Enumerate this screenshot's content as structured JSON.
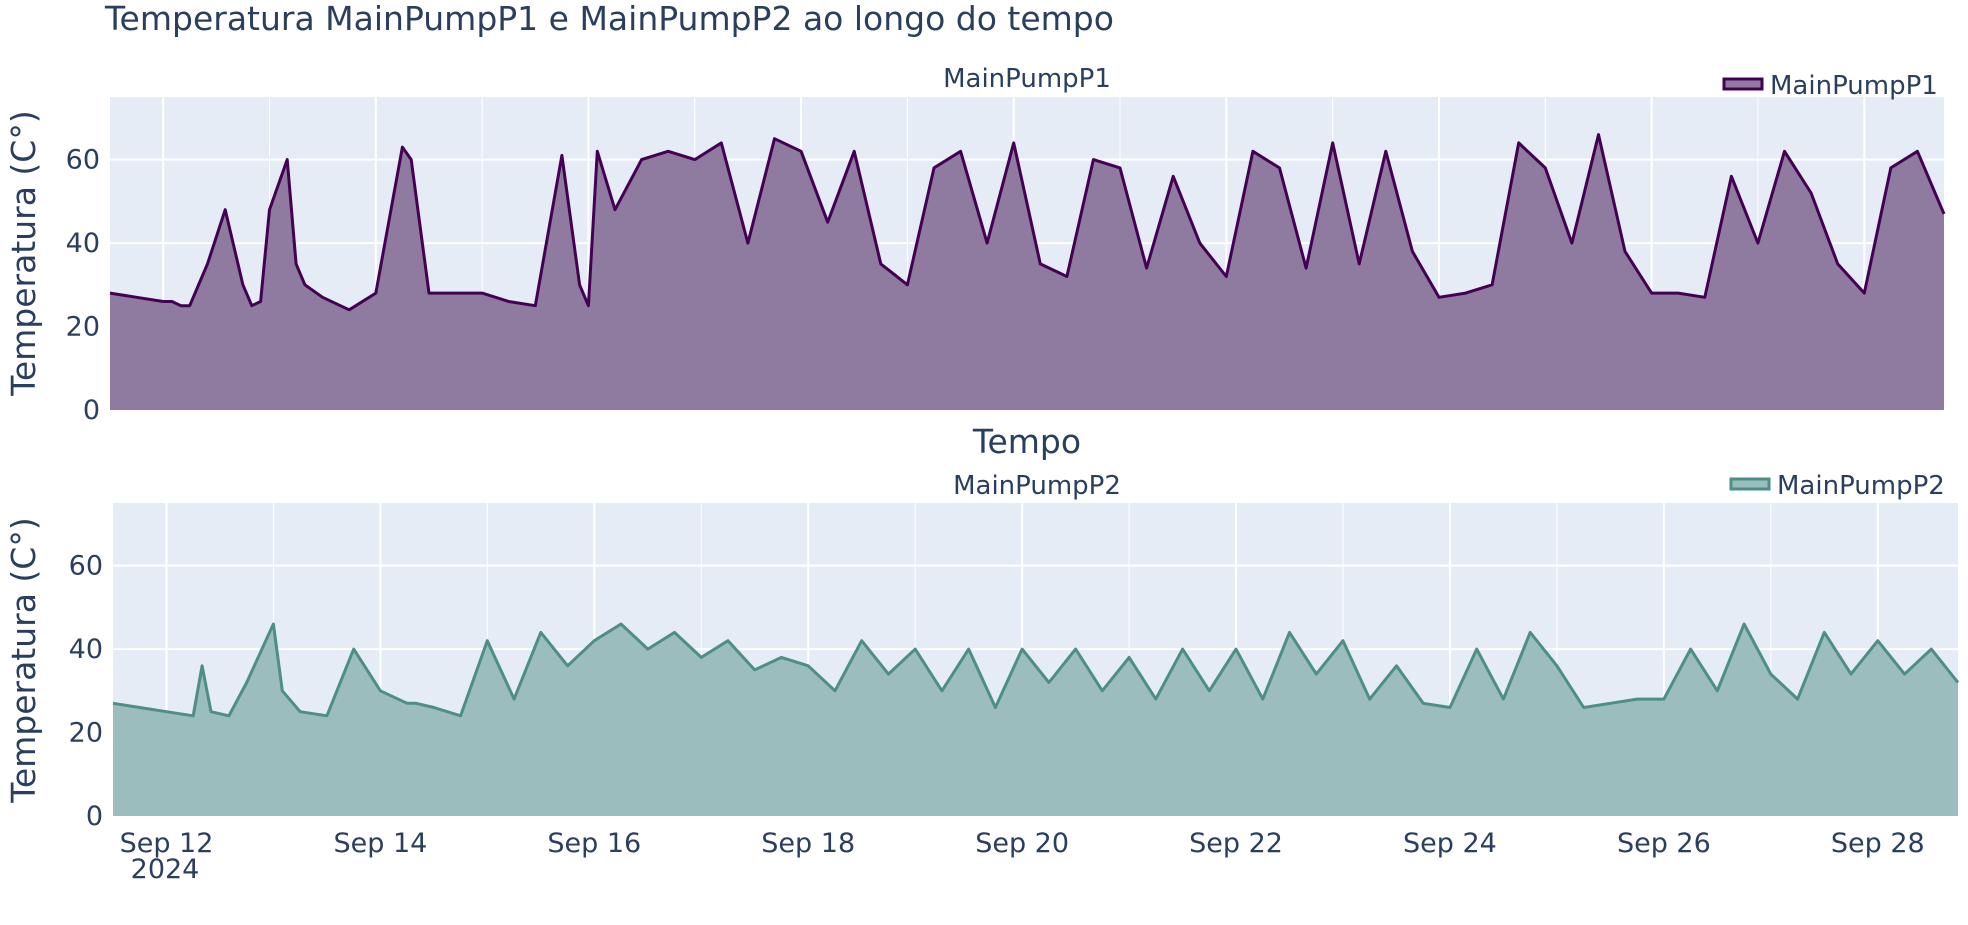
{
  "title": "Temperatura MainPumpP1 e MainPumpP2 ao longo do tempo",
  "x_title": "Tempo",
  "year_label": "2024",
  "chart_data": [
    {
      "type": "area",
      "title": "MainPumpP1",
      "ylabel": "Temperatura (C°)",
      "legend": "MainPumpP1",
      "legend_position": "top-right",
      "grid": true,
      "line_color": "#440154",
      "fill_color": "#8f7aa0",
      "ylim": [
        0,
        75
      ],
      "yticks": [
        0,
        20,
        40,
        60
      ],
      "xlim": [
        "2024-09-11 12:00",
        "2024-09-28 18:00"
      ],
      "x": [
        "2024-09-11 12:00",
        "2024-09-11 18:00",
        "2024-09-12 00:00",
        "2024-09-12 02:00",
        "2024-09-12 04:00",
        "2024-09-12 06:00",
        "2024-09-12 10:00",
        "2024-09-12 14:00",
        "2024-09-12 18:00",
        "2024-09-12 20:00",
        "2024-09-12 22:00",
        "2024-09-13 00:00",
        "2024-09-13 04:00",
        "2024-09-13 06:00",
        "2024-09-13 08:00",
        "2024-09-13 12:00",
        "2024-09-13 18:00",
        "2024-09-14 00:00",
        "2024-09-14 06:00",
        "2024-09-14 08:00",
        "2024-09-14 12:00",
        "2024-09-14 18:00",
        "2024-09-15 00:00",
        "2024-09-15 06:00",
        "2024-09-15 12:00",
        "2024-09-15 18:00",
        "2024-09-15 22:00",
        "2024-09-16 00:00",
        "2024-09-16 02:00",
        "2024-09-16 06:00",
        "2024-09-16 12:00",
        "2024-09-16 18:00",
        "2024-09-17 00:00",
        "2024-09-17 06:00",
        "2024-09-17 12:00",
        "2024-09-17 18:00",
        "2024-09-18 00:00",
        "2024-09-18 06:00",
        "2024-09-18 12:00",
        "2024-09-18 18:00",
        "2024-09-19 00:00",
        "2024-09-19 06:00",
        "2024-09-19 12:00",
        "2024-09-19 18:00",
        "2024-09-20 00:00",
        "2024-09-20 06:00",
        "2024-09-20 12:00",
        "2024-09-20 18:00",
        "2024-09-21 00:00",
        "2024-09-21 06:00",
        "2024-09-21 12:00",
        "2024-09-21 18:00",
        "2024-09-22 00:00",
        "2024-09-22 06:00",
        "2024-09-22 12:00",
        "2024-09-22 18:00",
        "2024-09-23 00:00",
        "2024-09-23 06:00",
        "2024-09-23 12:00",
        "2024-09-23 18:00",
        "2024-09-24 00:00",
        "2024-09-24 06:00",
        "2024-09-24 12:00",
        "2024-09-24 18:00",
        "2024-09-25 00:00",
        "2024-09-25 06:00",
        "2024-09-25 12:00",
        "2024-09-25 18:00",
        "2024-09-26 00:00",
        "2024-09-26 06:00",
        "2024-09-26 12:00",
        "2024-09-26 18:00",
        "2024-09-27 00:00",
        "2024-09-27 06:00",
        "2024-09-27 12:00",
        "2024-09-27 18:00",
        "2024-09-28 00:00",
        "2024-09-28 06:00",
        "2024-09-28 12:00",
        "2024-09-28 18:00"
      ],
      "y": [
        28,
        27,
        26,
        26,
        25,
        25,
        35,
        48,
        30,
        25,
        26,
        48,
        60,
        35,
        30,
        27,
        24,
        28,
        63,
        60,
        28,
        28,
        28,
        26,
        25,
        61,
        30,
        25,
        62,
        48,
        60,
        62,
        60,
        64,
        40,
        65,
        62,
        45,
        62,
        35,
        30,
        58,
        62,
        40,
        64,
        35,
        32,
        60,
        58,
        34,
        56,
        40,
        32,
        62,
        58,
        34,
        64,
        35,
        62,
        38,
        27,
        28,
        30,
        64,
        58,
        40,
        66,
        38,
        28,
        28,
        27,
        56,
        40,
        62,
        52,
        35,
        28,
        58,
        62,
        47
      ]
    },
    {
      "type": "area",
      "title": "MainPumpP2",
      "ylabel": "Temperatura (C°)",
      "legend": "MainPumpP2",
      "legend_position": "top-right",
      "grid": true,
      "line_color": "#4d8e85",
      "fill_color": "#9bbdbe",
      "ylim": [
        0,
        75
      ],
      "yticks": [
        0,
        20,
        40,
        60
      ],
      "xlim": [
        "2024-09-11 12:00",
        "2024-09-28 18:00"
      ],
      "xticks": [
        "Sep 12",
        "Sep 14",
        "Sep 16",
        "Sep 18",
        "Sep 20",
        "Sep 22",
        "Sep 24",
        "Sep 26",
        "Sep 28"
      ],
      "x": [
        "2024-09-11 12:00",
        "2024-09-11 18:00",
        "2024-09-12 00:00",
        "2024-09-12 06:00",
        "2024-09-12 08:00",
        "2024-09-12 10:00",
        "2024-09-12 14:00",
        "2024-09-12 18:00",
        "2024-09-13 00:00",
        "2024-09-13 02:00",
        "2024-09-13 06:00",
        "2024-09-13 12:00",
        "2024-09-13 18:00",
        "2024-09-14 00:00",
        "2024-09-14 06:00",
        "2024-09-14 08:00",
        "2024-09-14 12:00",
        "2024-09-14 18:00",
        "2024-09-15 00:00",
        "2024-09-15 06:00",
        "2024-09-15 12:00",
        "2024-09-15 18:00",
        "2024-09-16 00:00",
        "2024-09-16 06:00",
        "2024-09-16 12:00",
        "2024-09-16 18:00",
        "2024-09-17 00:00",
        "2024-09-17 06:00",
        "2024-09-17 12:00",
        "2024-09-17 18:00",
        "2024-09-18 00:00",
        "2024-09-18 06:00",
        "2024-09-18 12:00",
        "2024-09-18 18:00",
        "2024-09-19 00:00",
        "2024-09-19 06:00",
        "2024-09-19 12:00",
        "2024-09-19 18:00",
        "2024-09-20 00:00",
        "2024-09-20 06:00",
        "2024-09-20 12:00",
        "2024-09-20 18:00",
        "2024-09-21 00:00",
        "2024-09-21 06:00",
        "2024-09-21 12:00",
        "2024-09-21 18:00",
        "2024-09-22 00:00",
        "2024-09-22 06:00",
        "2024-09-22 12:00",
        "2024-09-22 18:00",
        "2024-09-23 00:00",
        "2024-09-23 06:00",
        "2024-09-23 12:00",
        "2024-09-23 18:00",
        "2024-09-24 00:00",
        "2024-09-24 06:00",
        "2024-09-24 12:00",
        "2024-09-24 18:00",
        "2024-09-25 00:00",
        "2024-09-25 06:00",
        "2024-09-25 12:00",
        "2024-09-25 18:00",
        "2024-09-26 00:00",
        "2024-09-26 06:00",
        "2024-09-26 12:00",
        "2024-09-26 18:00",
        "2024-09-27 00:00",
        "2024-09-27 06:00",
        "2024-09-27 12:00",
        "2024-09-27 18:00",
        "2024-09-28 00:00",
        "2024-09-28 06:00",
        "2024-09-28 12:00",
        "2024-09-28 18:00"
      ],
      "y": [
        27,
        26,
        25,
        24,
        36,
        25,
        24,
        32,
        46,
        30,
        25,
        24,
        40,
        30,
        27,
        27,
        26,
        24,
        42,
        28,
        44,
        36,
        42,
        46,
        40,
        44,
        38,
        42,
        35,
        38,
        36,
        30,
        42,
        34,
        40,
        30,
        40,
        26,
        40,
        32,
        40,
        30,
        38,
        28,
        40,
        30,
        40,
        28,
        44,
        34,
        42,
        28,
        36,
        27,
        26,
        40,
        28,
        44,
        36,
        26,
        27,
        28,
        28,
        40,
        30,
        46,
        34,
        28,
        44,
        34,
        42,
        34,
        40,
        32
      ]
    }
  ]
}
